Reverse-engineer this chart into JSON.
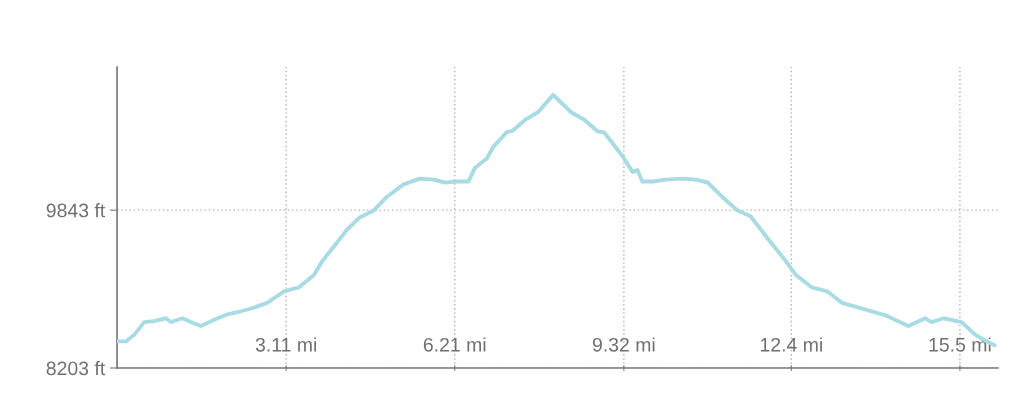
{
  "chart_data": {
    "type": "line",
    "x": [
      0.01,
      0.17,
      0.32,
      0.5,
      0.68,
      0.9,
      0.99,
      1.2,
      1.36,
      1.54,
      1.85,
      2.03,
      2.27,
      2.52,
      2.76,
      3.07,
      3.34,
      3.62,
      3.77,
      4.05,
      4.23,
      4.47,
      4.72,
      4.96,
      5.27,
      5.57,
      5.82,
      6.03,
      6.24,
      6.46,
      6.58,
      6.8,
      6.92,
      7.16,
      7.28,
      7.5,
      7.74,
      8.02,
      8.35,
      8.6,
      8.84,
      8.96,
      9.3,
      9.48,
      9.57,
      9.66,
      9.85,
      10.09,
      10.4,
      10.64,
      10.86,
      11.13,
      11.41,
      11.65,
      12.02,
      12.29,
      12.48,
      12.78,
      13.06,
      13.33,
      13.64,
      14.13,
      14.55,
      14.86,
      14.98,
      15.2,
      15.53,
      15.78,
      15.99,
      16.14
    ],
    "series": [
      {
        "color": "#a8dbe3",
        "values": [
          8480,
          8480,
          8550,
          8680,
          8690,
          8720,
          8680,
          8720,
          8680,
          8640,
          8720,
          8760,
          8790,
          8830,
          8880,
          9000,
          9040,
          9170,
          9310,
          9510,
          9640,
          9770,
          9840,
          9980,
          10110,
          10170,
          10160,
          10130,
          10140,
          10140,
          10280,
          10380,
          10500,
          10650,
          10670,
          10780,
          10860,
          11040,
          10860,
          10780,
          10660,
          10650,
          10400,
          10240,
          10260,
          10140,
          10140,
          10160,
          10170,
          10160,
          10130,
          9980,
          9840,
          9780,
          9510,
          9320,
          9170,
          9040,
          9000,
          8880,
          8830,
          8750,
          8640,
          8720,
          8680,
          8720,
          8680,
          8550,
          8480,
          8440
        ]
      }
    ],
    "xlim": [
      0,
      16.2
    ],
    "ylim": [
      8203,
      11330
    ],
    "xticks": [
      {
        "value": 3.11,
        "label": "3.11 mi"
      },
      {
        "value": 6.21,
        "label": "6.21 mi"
      },
      {
        "value": 9.32,
        "label": "9.32 mi"
      },
      {
        "value": 12.4,
        "label": "12.4 mi"
      },
      {
        "value": 15.5,
        "label": "15.5 mi"
      }
    ],
    "yticks": [
      {
        "value": 8203,
        "label": "8203 ft"
      },
      {
        "value": 9843,
        "label": "9843 ft"
      }
    ],
    "grid": true,
    "line_style": "solid"
  }
}
